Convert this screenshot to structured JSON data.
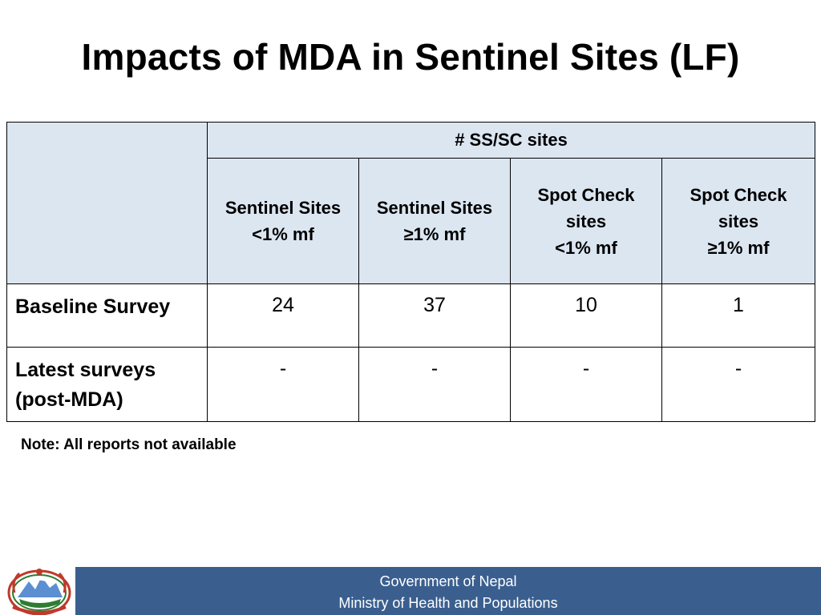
{
  "title": "Impacts of MDA in Sentinel Sites (LF)",
  "table": {
    "group_header": "# SS/SC sites",
    "columns": [
      {
        "lines": [
          "Sentinel Sites",
          "<1% mf"
        ]
      },
      {
        "lines": [
          "Sentinel Sites",
          "≥1% mf"
        ]
      },
      {
        "lines": [
          "Spot Check",
          "sites",
          "<1% mf"
        ]
      },
      {
        "lines": [
          "Spot Check",
          "sites",
          "≥1% mf"
        ]
      }
    ],
    "rows": [
      {
        "label_lines": [
          "Baseline Survey"
        ],
        "values": [
          "24",
          "37",
          "10",
          "1"
        ]
      },
      {
        "label_lines": [
          "Latest surveys",
          "(post-MDA)"
        ],
        "values": [
          "-",
          "-",
          "-",
          "-"
        ]
      }
    ]
  },
  "note": "Note: All reports not available",
  "footer": {
    "line1": "Government of Nepal",
    "line2": "Ministry of Health and Populations"
  },
  "colors": {
    "header_fill": "#dce6f1",
    "footer_bar": "#3a5f8f"
  },
  "icons": {
    "emblem": "nepal-government-emblem"
  }
}
